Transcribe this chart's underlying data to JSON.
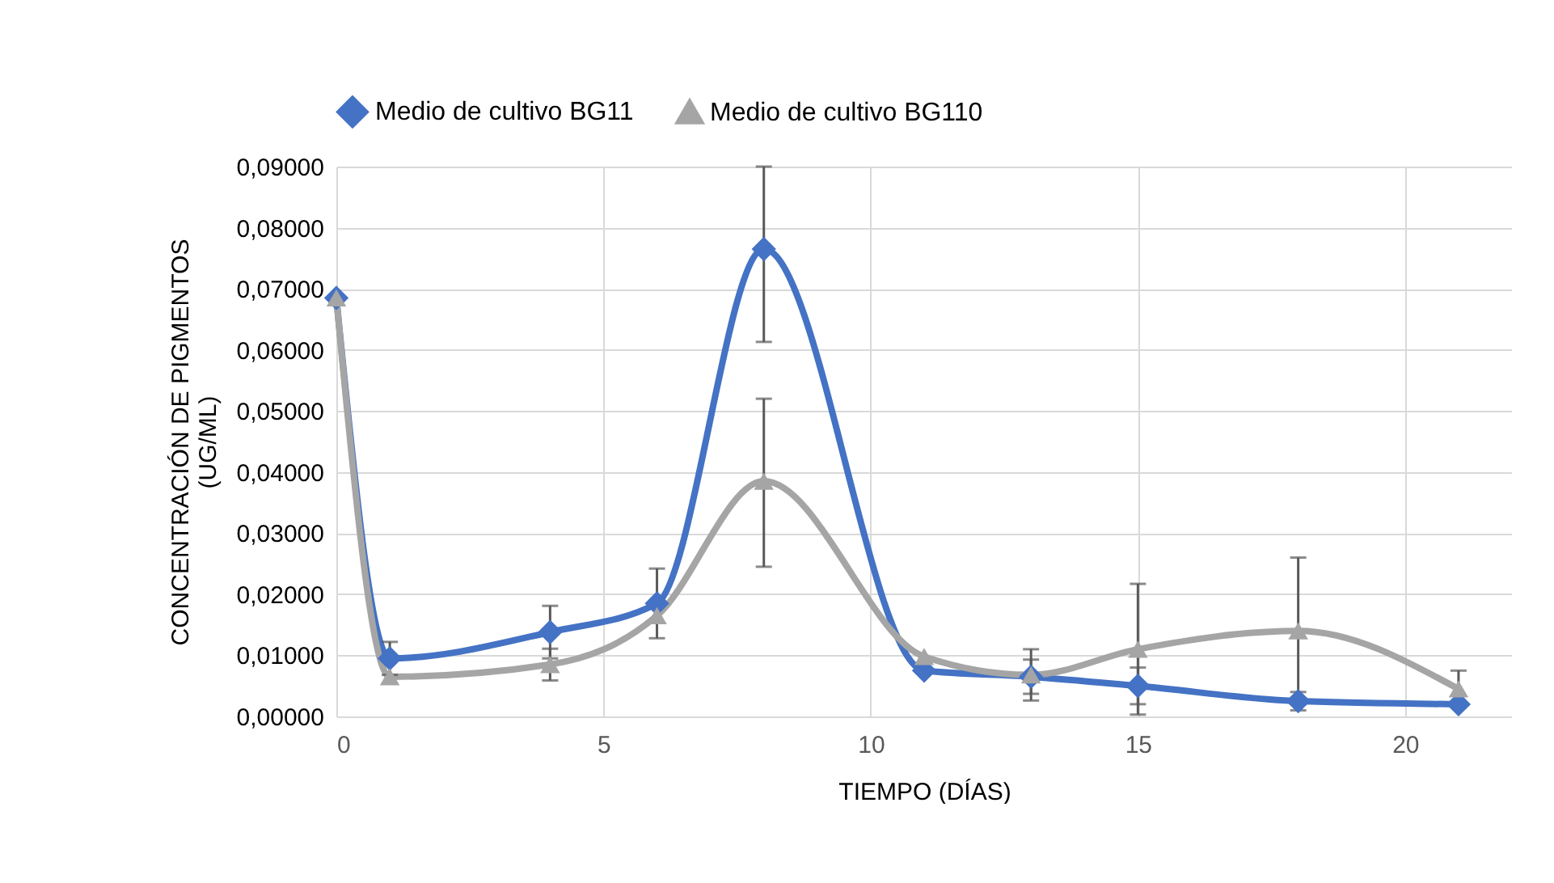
{
  "chart_data": {
    "type": "line",
    "xlabel": "TIEMPO (DÍAS)",
    "ylabel": "CONCENTRACIÓN DE PIGMENTOS (UG/ML)",
    "x": [
      0,
      1,
      4,
      6,
      8,
      11,
      13,
      15,
      18,
      21
    ],
    "series": [
      {
        "name": "Medio de cultivo BG11",
        "color": "#4472c4",
        "marker": "diamond",
        "values": [
          0.0685,
          0.0095,
          0.0138,
          0.0185,
          0.0765,
          0.0075,
          0.0065,
          0.005,
          0.0025,
          0.002
        ],
        "errors": [
          null,
          0.0027,
          0.0043,
          0.0057,
          [
            0.0613,
            0.09
          ],
          null,
          0.0028,
          0.003,
          0.0015,
          null
        ]
      },
      {
        "name": "Medio de cultivo BG110",
        "color": "#a5a5a5",
        "marker": "triangle",
        "values": [
          0.0685,
          0.0065,
          0.0085,
          0.0165,
          0.0385,
          0.0098,
          0.0068,
          0.011,
          0.014,
          0.0045
        ],
        "errors": [
          null,
          null,
          0.0026,
          null,
          [
            0.0245,
            0.052
          ],
          null,
          0.0042,
          0.0107,
          0.012,
          0.003
        ]
      }
    ],
    "xlim": [
      0,
      22
    ],
    "xticks": [
      0,
      5,
      10,
      15,
      20
    ],
    "ylim": [
      0,
      0.09
    ],
    "yticks": [
      {
        "value": 0,
        "label": "0,00000"
      },
      {
        "value": 0.01,
        "label": "0,01000"
      },
      {
        "value": 0.02,
        "label": "0,02000"
      },
      {
        "value": 0.03,
        "label": "0,03000"
      },
      {
        "value": 0.04,
        "label": "0,04000"
      },
      {
        "value": 0.05,
        "label": "0,05000"
      },
      {
        "value": 0.06,
        "label": "0,06000"
      },
      {
        "value": 0.07,
        "label": "0,07000"
      },
      {
        "value": 0.08,
        "label": "0,08000"
      },
      {
        "value": 0.09,
        "label": "0,09000"
      }
    ],
    "grid": true,
    "legend": "top",
    "line_style": "solid"
  }
}
